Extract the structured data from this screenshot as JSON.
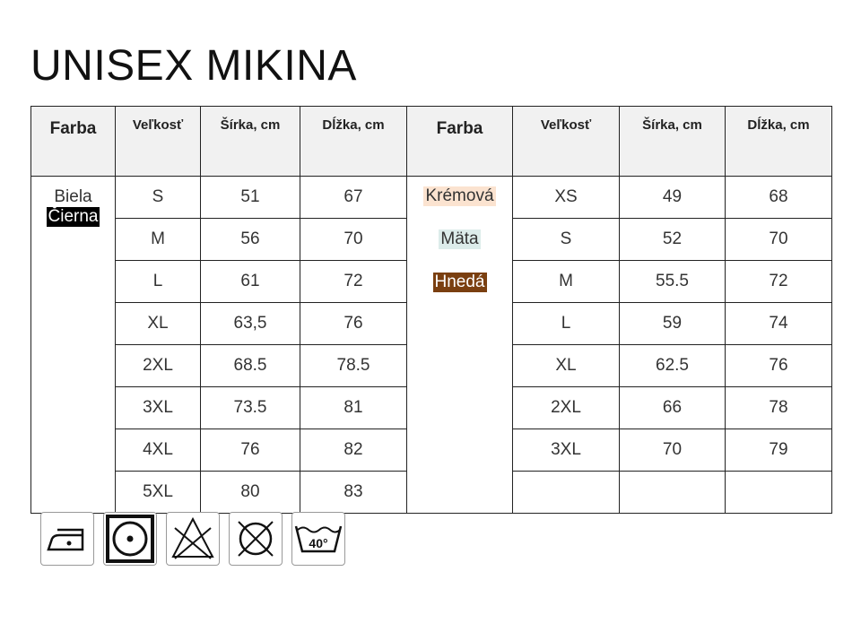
{
  "title": "UNISEX MIKINA",
  "headers": [
    "Farba",
    "Veľkosť",
    "Šírka, cm",
    "Dĺžka, cm",
    "Farba",
    "Veľkosť",
    "Šírka, cm",
    "Dĺžka, cm"
  ],
  "left": {
    "colors": [
      {
        "name": "Biela",
        "bg": "#ffffff",
        "fg": "#333333"
      },
      {
        "name": "Čierna",
        "bg": "#000000",
        "fg": "#ffffff"
      }
    ],
    "rows": [
      [
        "S",
        "51",
        "67"
      ],
      [
        "M",
        "56",
        "70"
      ],
      [
        "L",
        "61",
        "72"
      ],
      [
        "XL",
        "63,5",
        "76"
      ],
      [
        "2XL",
        "68.5",
        "78.5"
      ],
      [
        "3XL",
        "73.5",
        "81"
      ],
      [
        "4XL",
        "76",
        "82"
      ],
      [
        "5XL",
        "80",
        "83"
      ]
    ]
  },
  "right": {
    "colors": [
      {
        "name": "Krémová",
        "bg": "#fbe3d0",
        "fg": "#333333"
      },
      {
        "name": "Mäta",
        "bg": "#dcecea",
        "fg": "#333333"
      },
      {
        "name": "Hnedá",
        "bg": "#7a3f10",
        "fg": "#ffffff"
      }
    ],
    "rows": [
      [
        "XS",
        "49",
        "68"
      ],
      [
        "S",
        "52",
        "70"
      ],
      [
        "M",
        "55.5",
        "72"
      ],
      [
        "L",
        "59",
        "74"
      ],
      [
        "XL",
        "62.5",
        "76"
      ],
      [
        "2XL",
        "66",
        "78"
      ],
      [
        "3XL",
        "70",
        "79"
      ],
      [
        "",
        "",
        ""
      ]
    ]
  },
  "care_icons": [
    "iron-medium-icon",
    "tumble-dry-icon",
    "no-bleach-icon",
    "no-dry-clean-icon",
    "wash-40-icon"
  ],
  "wash_temp": "40°"
}
